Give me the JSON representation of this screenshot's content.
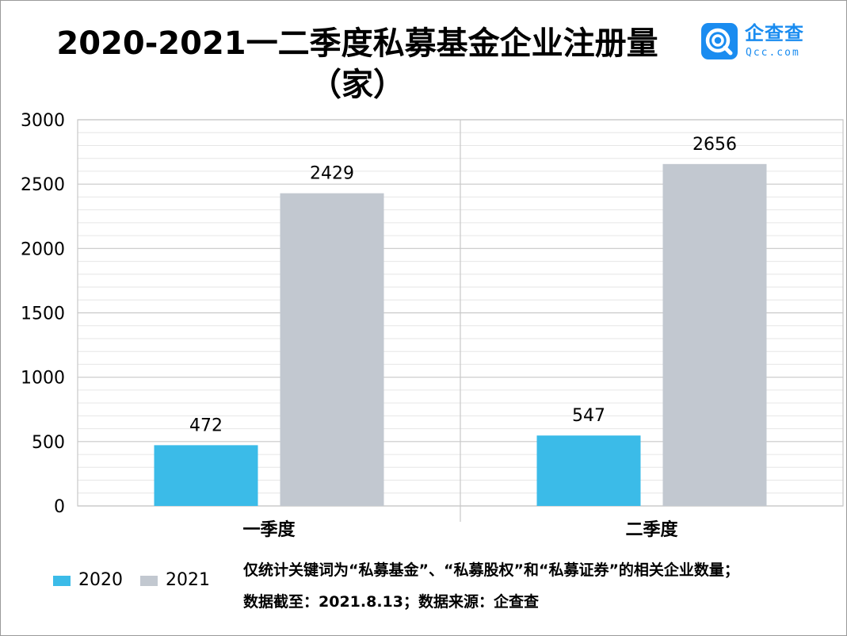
{
  "title_line1": "2020-2021一二季度私募基金企业注册量",
  "title_line2": "（家）",
  "logo": {
    "name_cn": "企查查",
    "name_en": "Qcc.com",
    "mark_icon": "qcc-logo-icon",
    "color": "#1a8cf0"
  },
  "notes": {
    "line1": "仅统计关键词为“私募基金”、“私募股权”和“私募证券”的相关企业数量；",
    "line2": "数据截至：2021.8.13；数据来源：企查查"
  },
  "chart_data": {
    "type": "bar",
    "title": "2020-2021一二季度私募基金企业注册量（家）",
    "categories": [
      "一季度",
      "二季度"
    ],
    "series": [
      {
        "name": "2020",
        "values": [
          472,
          547
        ],
        "color": "#3bbbe8"
      },
      {
        "name": "2021",
        "values": [
          2429,
          2656
        ],
        "color": "#c2c8d0"
      }
    ],
    "ylim": [
      0,
      3000
    ],
    "yticks": [
      0,
      500,
      1000,
      1500,
      2000,
      2500,
      3000
    ],
    "ytick_labels": [
      "0",
      "500",
      "1000",
      "1500",
      "2000",
      "2500",
      "3000"
    ],
    "minor_grid_step": 100,
    "grid": true,
    "data_labels": true,
    "legend_position": "bottom-left"
  }
}
